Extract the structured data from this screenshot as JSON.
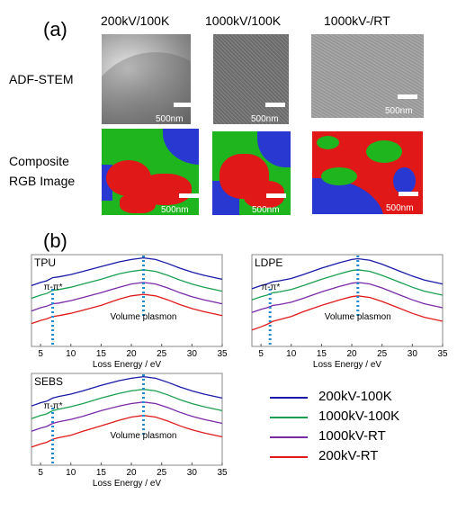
{
  "panel_a": {
    "label": "(a)",
    "columns": [
      "200kV/100K",
      "1000kV/100K",
      "1000kV-/RT"
    ],
    "row_adf": "ADF-STEM",
    "row_rgb_line1": "Composite",
    "row_rgb_line2": "RGB Image",
    "scalebar": "500nm"
  },
  "panel_b": {
    "label": "(b)"
  },
  "legend": [
    {
      "label": "200kV-100K",
      "color": "#1a1aa8"
    },
    {
      "label": "1000kV-100K",
      "color": "#1aa050"
    },
    {
      "label": "1000kV-RT",
      "color": "#7a2aa8"
    },
    {
      "label": "200kV-RT",
      "color": "#e01a1a"
    }
  ],
  "chart_data": [
    {
      "type": "line",
      "panel_label": "TPU",
      "xlabel": "Loss Energy / eV",
      "xticks": [
        5,
        10,
        15,
        20,
        25,
        30,
        35
      ],
      "xlim": [
        3.5,
        35
      ],
      "annotation_pi": "π-π*",
      "annotation_plasmon": "Volume plasmon",
      "pi_marker_x": 7,
      "plasmon_marker_x": 22,
      "series": [
        {
          "name": "200kV-100K",
          "x": [
            3.5,
            5,
            6,
            7,
            8,
            10,
            12,
            15,
            18,
            20,
            22,
            24,
            26,
            28,
            30,
            32,
            35
          ],
          "y": [
            0.7,
            0.74,
            0.76,
            0.8,
            0.81,
            0.84,
            0.88,
            0.94,
            1.0,
            1.03,
            1.05,
            1.03,
            0.98,
            0.92,
            0.87,
            0.83,
            0.78
          ]
        },
        {
          "name": "1000kV-100K",
          "x": [
            3.5,
            5,
            6,
            7,
            8,
            10,
            12,
            15,
            18,
            20,
            22,
            24,
            26,
            28,
            30,
            32,
            35
          ],
          "y": [
            0.54,
            0.58,
            0.6,
            0.64,
            0.65,
            0.68,
            0.72,
            0.78,
            0.85,
            0.88,
            0.9,
            0.88,
            0.83,
            0.77,
            0.72,
            0.68,
            0.63
          ]
        },
        {
          "name": "1000kV-RT",
          "x": [
            3.5,
            5,
            6,
            7,
            8,
            10,
            12,
            15,
            18,
            20,
            22,
            24,
            26,
            28,
            30,
            32,
            35
          ],
          "y": [
            0.38,
            0.42,
            0.44,
            0.47,
            0.48,
            0.51,
            0.55,
            0.61,
            0.68,
            0.72,
            0.74,
            0.72,
            0.67,
            0.61,
            0.56,
            0.52,
            0.47
          ]
        },
        {
          "name": "200kV-RT",
          "x": [
            3.5,
            5,
            6,
            7,
            8,
            10,
            12,
            15,
            18,
            20,
            22,
            24,
            26,
            28,
            30,
            32,
            35
          ],
          "y": [
            0.22,
            0.26,
            0.28,
            0.31,
            0.32,
            0.35,
            0.39,
            0.45,
            0.53,
            0.57,
            0.59,
            0.57,
            0.52,
            0.46,
            0.41,
            0.37,
            0.32
          ]
        }
      ]
    },
    {
      "type": "line",
      "panel_label": "LDPE",
      "xlabel": "Loss Energy / eV",
      "xticks": [
        5,
        10,
        15,
        20,
        25,
        30,
        35
      ],
      "xlim": [
        3.5,
        35
      ],
      "annotation_pi": "π-π*",
      "annotation_plasmon": "Volume plasmon",
      "pi_marker_x": 6.5,
      "plasmon_marker_x": 21,
      "series": [
        {
          "name": "200kV-100K",
          "x": [
            3.5,
            5,
            6,
            7,
            8,
            10,
            12,
            15,
            18,
            20,
            21,
            23,
            25,
            28,
            30,
            32,
            35
          ],
          "y": [
            0.66,
            0.7,
            0.72,
            0.75,
            0.76,
            0.79,
            0.84,
            0.92,
            0.99,
            1.03,
            1.04,
            1.02,
            0.97,
            0.88,
            0.82,
            0.77,
            0.72
          ]
        },
        {
          "name": "1000kV-100K",
          "x": [
            3.5,
            5,
            6,
            7,
            8,
            10,
            12,
            15,
            18,
            20,
            21,
            23,
            25,
            28,
            30,
            32,
            35
          ],
          "y": [
            0.52,
            0.56,
            0.58,
            0.61,
            0.62,
            0.65,
            0.7,
            0.78,
            0.85,
            0.89,
            0.9,
            0.88,
            0.83,
            0.74,
            0.68,
            0.63,
            0.58
          ]
        },
        {
          "name": "1000kV-RT",
          "x": [
            3.5,
            5,
            6,
            7,
            8,
            10,
            12,
            15,
            18,
            20,
            21,
            23,
            25,
            28,
            30,
            32,
            35
          ],
          "y": [
            0.36,
            0.4,
            0.42,
            0.45,
            0.46,
            0.49,
            0.54,
            0.62,
            0.69,
            0.73,
            0.74,
            0.72,
            0.67,
            0.58,
            0.52,
            0.47,
            0.42
          ]
        },
        {
          "name": "200kV-RT",
          "x": [
            3.5,
            5,
            6,
            7,
            8,
            10,
            12,
            15,
            18,
            20,
            21,
            23,
            25,
            28,
            30,
            32,
            35
          ],
          "y": [
            0.14,
            0.18,
            0.21,
            0.25,
            0.27,
            0.31,
            0.37,
            0.45,
            0.52,
            0.56,
            0.57,
            0.55,
            0.5,
            0.41,
            0.35,
            0.3,
            0.25
          ]
        }
      ]
    },
    {
      "type": "line",
      "panel_label": "SEBS",
      "xlabel": "Loss Energy / eV",
      "xticks": [
        5,
        10,
        15,
        20,
        25,
        30,
        35
      ],
      "xlim": [
        3.5,
        35
      ],
      "annotation_pi": "π-π*",
      "annotation_plasmon": "Volume plasmon",
      "pi_marker_x": 7,
      "plasmon_marker_x": 22,
      "series": [
        {
          "name": "200kV-100K",
          "x": [
            3.5,
            5,
            6,
            7,
            8,
            10,
            12,
            15,
            18,
            20,
            22,
            24,
            26,
            28,
            30,
            32,
            35
          ],
          "y": [
            0.68,
            0.72,
            0.74,
            0.78,
            0.8,
            0.83,
            0.87,
            0.94,
            1.0,
            1.03,
            1.05,
            1.03,
            0.98,
            0.92,
            0.87,
            0.83,
            0.78
          ]
        },
        {
          "name": "1000kV-100K",
          "x": [
            3.5,
            5,
            6,
            7,
            8,
            10,
            12,
            15,
            18,
            20,
            22,
            24,
            26,
            28,
            30,
            32,
            35
          ],
          "y": [
            0.52,
            0.56,
            0.58,
            0.62,
            0.64,
            0.67,
            0.71,
            0.78,
            0.84,
            0.87,
            0.89,
            0.87,
            0.82,
            0.76,
            0.71,
            0.67,
            0.62
          ]
        },
        {
          "name": "1000kV-RT",
          "x": [
            3.5,
            5,
            6,
            7,
            8,
            10,
            12,
            15,
            18,
            20,
            22,
            24,
            26,
            28,
            30,
            32,
            35
          ],
          "y": [
            0.36,
            0.4,
            0.42,
            0.46,
            0.48,
            0.51,
            0.55,
            0.62,
            0.68,
            0.71,
            0.73,
            0.71,
            0.66,
            0.6,
            0.55,
            0.51,
            0.46
          ]
        },
        {
          "name": "200kV-RT",
          "x": [
            3.5,
            5,
            6,
            7,
            8,
            10,
            12,
            15,
            18,
            20,
            22,
            24,
            26,
            28,
            30,
            32,
            35
          ],
          "y": [
            0.16,
            0.2,
            0.22,
            0.26,
            0.28,
            0.31,
            0.36,
            0.43,
            0.5,
            0.54,
            0.56,
            0.54,
            0.49,
            0.43,
            0.38,
            0.34,
            0.29
          ]
        }
      ]
    }
  ]
}
